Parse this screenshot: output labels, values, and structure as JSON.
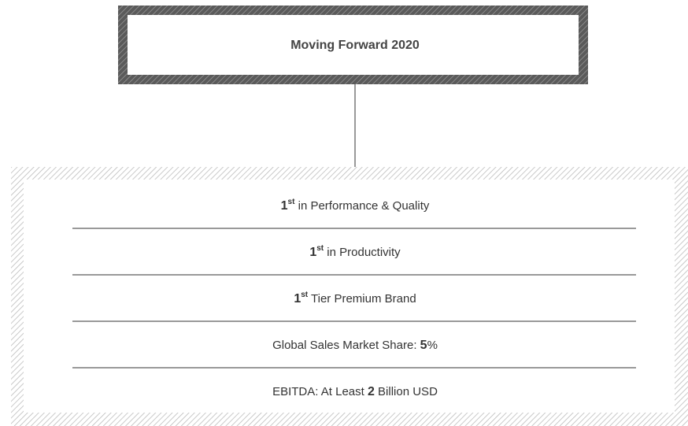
{
  "title": "Moving Forward 2020",
  "items": [
    {
      "parts": [
        {
          "text": "1",
          "style": "bold"
        },
        {
          "text": "st",
          "style": "sup"
        },
        {
          "text": " in Performance & Quality",
          "style": "normal"
        }
      ]
    },
    {
      "parts": [
        {
          "text": "1",
          "style": "bold"
        },
        {
          "text": "st",
          "style": "sup"
        },
        {
          "text": " in Productivity",
          "style": "normal"
        }
      ]
    },
    {
      "parts": [
        {
          "text": "1",
          "style": "bold"
        },
        {
          "text": "st",
          "style": "sup"
        },
        {
          "text": " Tier Premium Brand",
          "style": "normal"
        }
      ]
    },
    {
      "parts": [
        {
          "text": "Global Sales Market Share: ",
          "style": "normal"
        },
        {
          "text": "5",
          "style": "bold"
        },
        {
          "text": "%",
          "style": "normal"
        }
      ]
    },
    {
      "parts": [
        {
          "text": "EBITDA: At Least ",
          "style": "normal"
        },
        {
          "text": "2",
          "style": "bold"
        },
        {
          "text": " Billion USD",
          "style": "normal"
        }
      ]
    }
  ]
}
